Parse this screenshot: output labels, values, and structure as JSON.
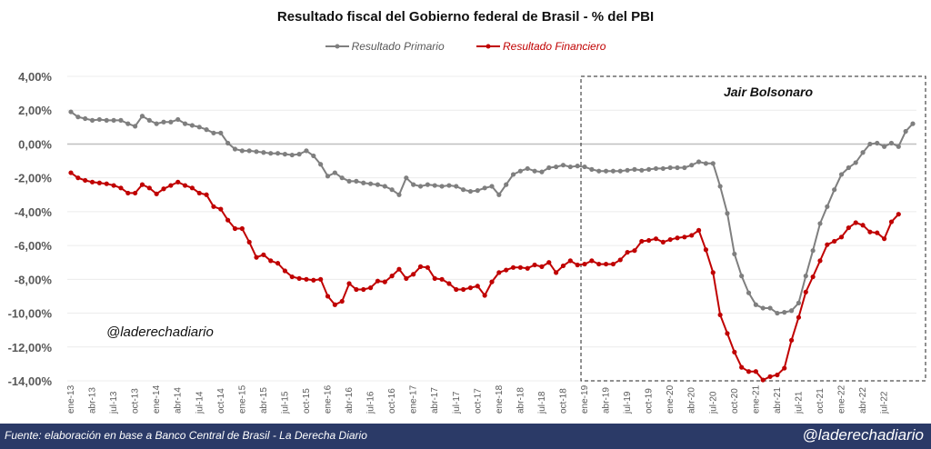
{
  "chart_data": {
    "type": "line",
    "title": "Resultado fiscal del Gobierno federal de Brasil - % del PBI",
    "xlabel": "",
    "ylabel": "",
    "ylim": [
      -14,
      4
    ],
    "yticks": [
      "4,00%",
      "2,00%",
      "0,00%",
      "-2,00%",
      "-4,00%",
      "-6,00%",
      "-8,00%",
      "-10,00%",
      "-12,00%",
      "-14,00%"
    ],
    "ytick_values": [
      4,
      2,
      0,
      -2,
      -4,
      -6,
      -8,
      -10,
      -12,
      -14
    ],
    "x_start": "ene-13",
    "x_frequency": "monthly",
    "xticks": [
      "ene-13",
      "abr-13",
      "jul-13",
      "oct-13",
      "ene-14",
      "abr-14",
      "jul-14",
      "oct-14",
      "ene-15",
      "abr-15",
      "jul-15",
      "oct-15",
      "ene-16",
      "abr-16",
      "jul-16",
      "oct-16",
      "ene-17",
      "abr-17",
      "jul-17",
      "oct-17",
      "ene-18",
      "abr-18",
      "jul-18",
      "oct-18",
      "ene-19",
      "abr-19",
      "jul-19",
      "oct-19",
      "ene-20",
      "abr-20",
      "jul-20",
      "oct-20",
      "ene-21",
      "abr-21",
      "jul-21",
      "oct-21",
      "ene-22",
      "abr-22",
      "jul-22"
    ],
    "grid": true,
    "legend_position": "top",
    "annotations": [
      {
        "text": "Jair Bolsonaro",
        "type": "dashed-box",
        "from": "ene-19",
        "to": "jul-22"
      },
      {
        "text": "@laderechadiario",
        "type": "watermark"
      }
    ],
    "series": [
      {
        "name": "Resultado Primario",
        "color": "#7f7f7f",
        "values": [
          1.9,
          1.6,
          1.5,
          1.4,
          1.45,
          1.4,
          1.4,
          1.4,
          1.2,
          1.05,
          1.65,
          1.4,
          1.2,
          1.3,
          1.3,
          1.45,
          1.2,
          1.1,
          1.0,
          0.85,
          0.65,
          0.65,
          0.05,
          -0.3,
          -0.4,
          -0.4,
          -0.45,
          -0.5,
          -0.55,
          -0.55,
          -0.6,
          -0.65,
          -0.6,
          -0.4,
          -0.7,
          -1.2,
          -1.9,
          -1.7,
          -2.0,
          -2.2,
          -2.2,
          -2.3,
          -2.35,
          -2.4,
          -2.5,
          -2.7,
          -3.0,
          -2.0,
          -2.4,
          -2.5,
          -2.4,
          -2.45,
          -2.5,
          -2.45,
          -2.5,
          -2.7,
          -2.8,
          -2.75,
          -2.6,
          -2.5,
          -3.0,
          -2.4,
          -1.8,
          -1.6,
          -1.45,
          -1.6,
          -1.65,
          -1.4,
          -1.35,
          -1.25,
          -1.35,
          -1.3,
          -1.35,
          -1.5,
          -1.6,
          -1.6,
          -1.6,
          -1.6,
          -1.55,
          -1.5,
          -1.55,
          -1.5,
          -1.45,
          -1.45,
          -1.4,
          -1.4,
          -1.4,
          -1.25,
          -1.05,
          -1.15,
          -1.15,
          -2.5,
          -4.1,
          -6.5,
          -7.8,
          -8.8,
          -9.5,
          -9.7,
          -9.7,
          -10.0,
          -9.95,
          -9.85,
          -9.4,
          -7.8,
          -6.3,
          -4.7,
          -3.7,
          -2.7,
          -1.8,
          -1.4,
          -1.1,
          -0.5,
          0.0,
          0.05,
          -0.15,
          0.05,
          -0.15,
          0.75,
          1.2
        ]
      },
      {
        "name": "Resultado Financiero",
        "color": "#c00000",
        "values": [
          -1.7,
          -2.0,
          -2.15,
          -2.25,
          -2.3,
          -2.35,
          -2.45,
          -2.6,
          -2.9,
          -2.9,
          -2.4,
          -2.6,
          -2.95,
          -2.65,
          -2.45,
          -2.25,
          -2.45,
          -2.6,
          -2.9,
          -3.0,
          -3.7,
          -3.85,
          -4.5,
          -5.0,
          -5.0,
          -5.8,
          -6.7,
          -6.55,
          -6.9,
          -7.05,
          -7.5,
          -7.85,
          -7.95,
          -8.0,
          -8.05,
          -8.0,
          -9.0,
          -9.5,
          -9.3,
          -8.25,
          -8.6,
          -8.6,
          -8.5,
          -8.1,
          -8.15,
          -7.8,
          -7.4,
          -7.95,
          -7.7,
          -7.25,
          -7.3,
          -7.95,
          -8.0,
          -8.25,
          -8.6,
          -8.6,
          -8.5,
          -8.4,
          -8.95,
          -8.15,
          -7.6,
          -7.45,
          -7.3,
          -7.3,
          -7.35,
          -7.15,
          -7.25,
          -7.0,
          -7.6,
          -7.2,
          -6.9,
          -7.15,
          -7.1,
          -6.9,
          -7.1,
          -7.1,
          -7.1,
          -6.85,
          -6.4,
          -6.3,
          -5.75,
          -5.7,
          -5.6,
          -5.8,
          -5.65,
          -5.55,
          -5.5,
          -5.4,
          -5.1,
          -6.25,
          -7.6,
          -10.1,
          -11.2,
          -12.3,
          -13.2,
          -13.45,
          -13.45,
          -13.95,
          -13.75,
          -13.65,
          -13.25,
          -11.6,
          -10.25,
          -8.75,
          -7.85,
          -6.9,
          -5.95,
          -5.75,
          -5.5,
          -4.95,
          -4.65,
          -4.8,
          -5.2,
          -5.25,
          -5.6,
          -4.6,
          -4.15
        ]
      }
    ]
  },
  "labels": {
    "bolsonaro": "Jair Bolsonaro",
    "watermark": "@laderechadiario"
  },
  "footer": {
    "source": "Fuente: elaboración en base a Banco Central de Brasil - La Derecha Diario",
    "handle": "@laderechadiario",
    "background": "#2b3a67"
  }
}
